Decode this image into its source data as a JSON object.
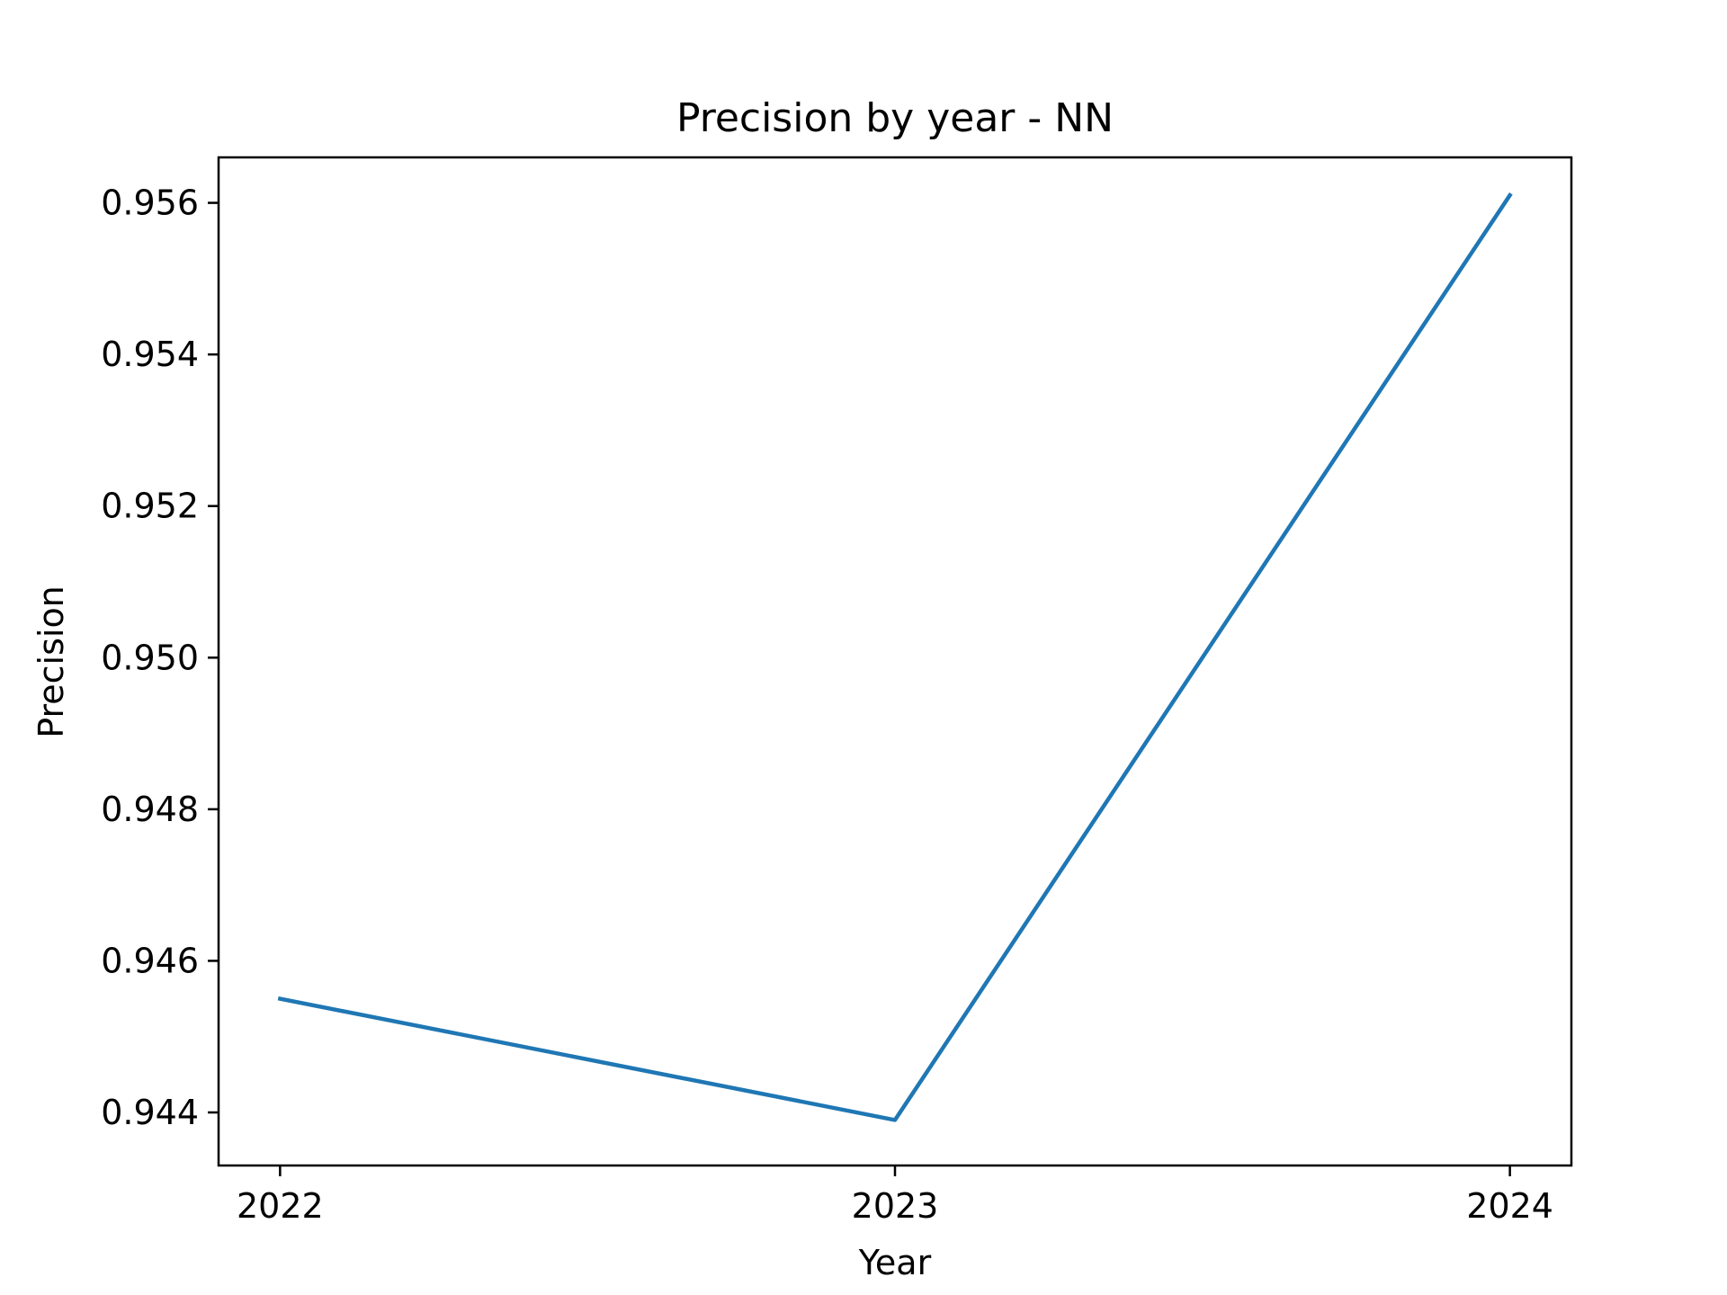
{
  "chart_data": {
    "type": "line",
    "title": "Precision by year - NN",
    "xlabel": "Year",
    "ylabel": "Precision",
    "x": [
      2022,
      2023,
      2024
    ],
    "x_tick_labels": [
      "2022",
      "2023",
      "2024"
    ],
    "y_ticks": [
      0.944,
      0.946,
      0.948,
      0.95,
      0.952,
      0.954,
      0.956
    ],
    "y_tick_labels": [
      "0.944",
      "0.946",
      "0.948",
      "0.950",
      "0.952",
      "0.954",
      "0.956"
    ],
    "xlim": [
      2021.9,
      2024.1
    ],
    "ylim": [
      0.9433,
      0.9566
    ],
    "grid": false,
    "series": [
      {
        "values": [
          0.9455,
          0.9439,
          0.9561
        ],
        "color": "#1f77b4"
      }
    ]
  }
}
